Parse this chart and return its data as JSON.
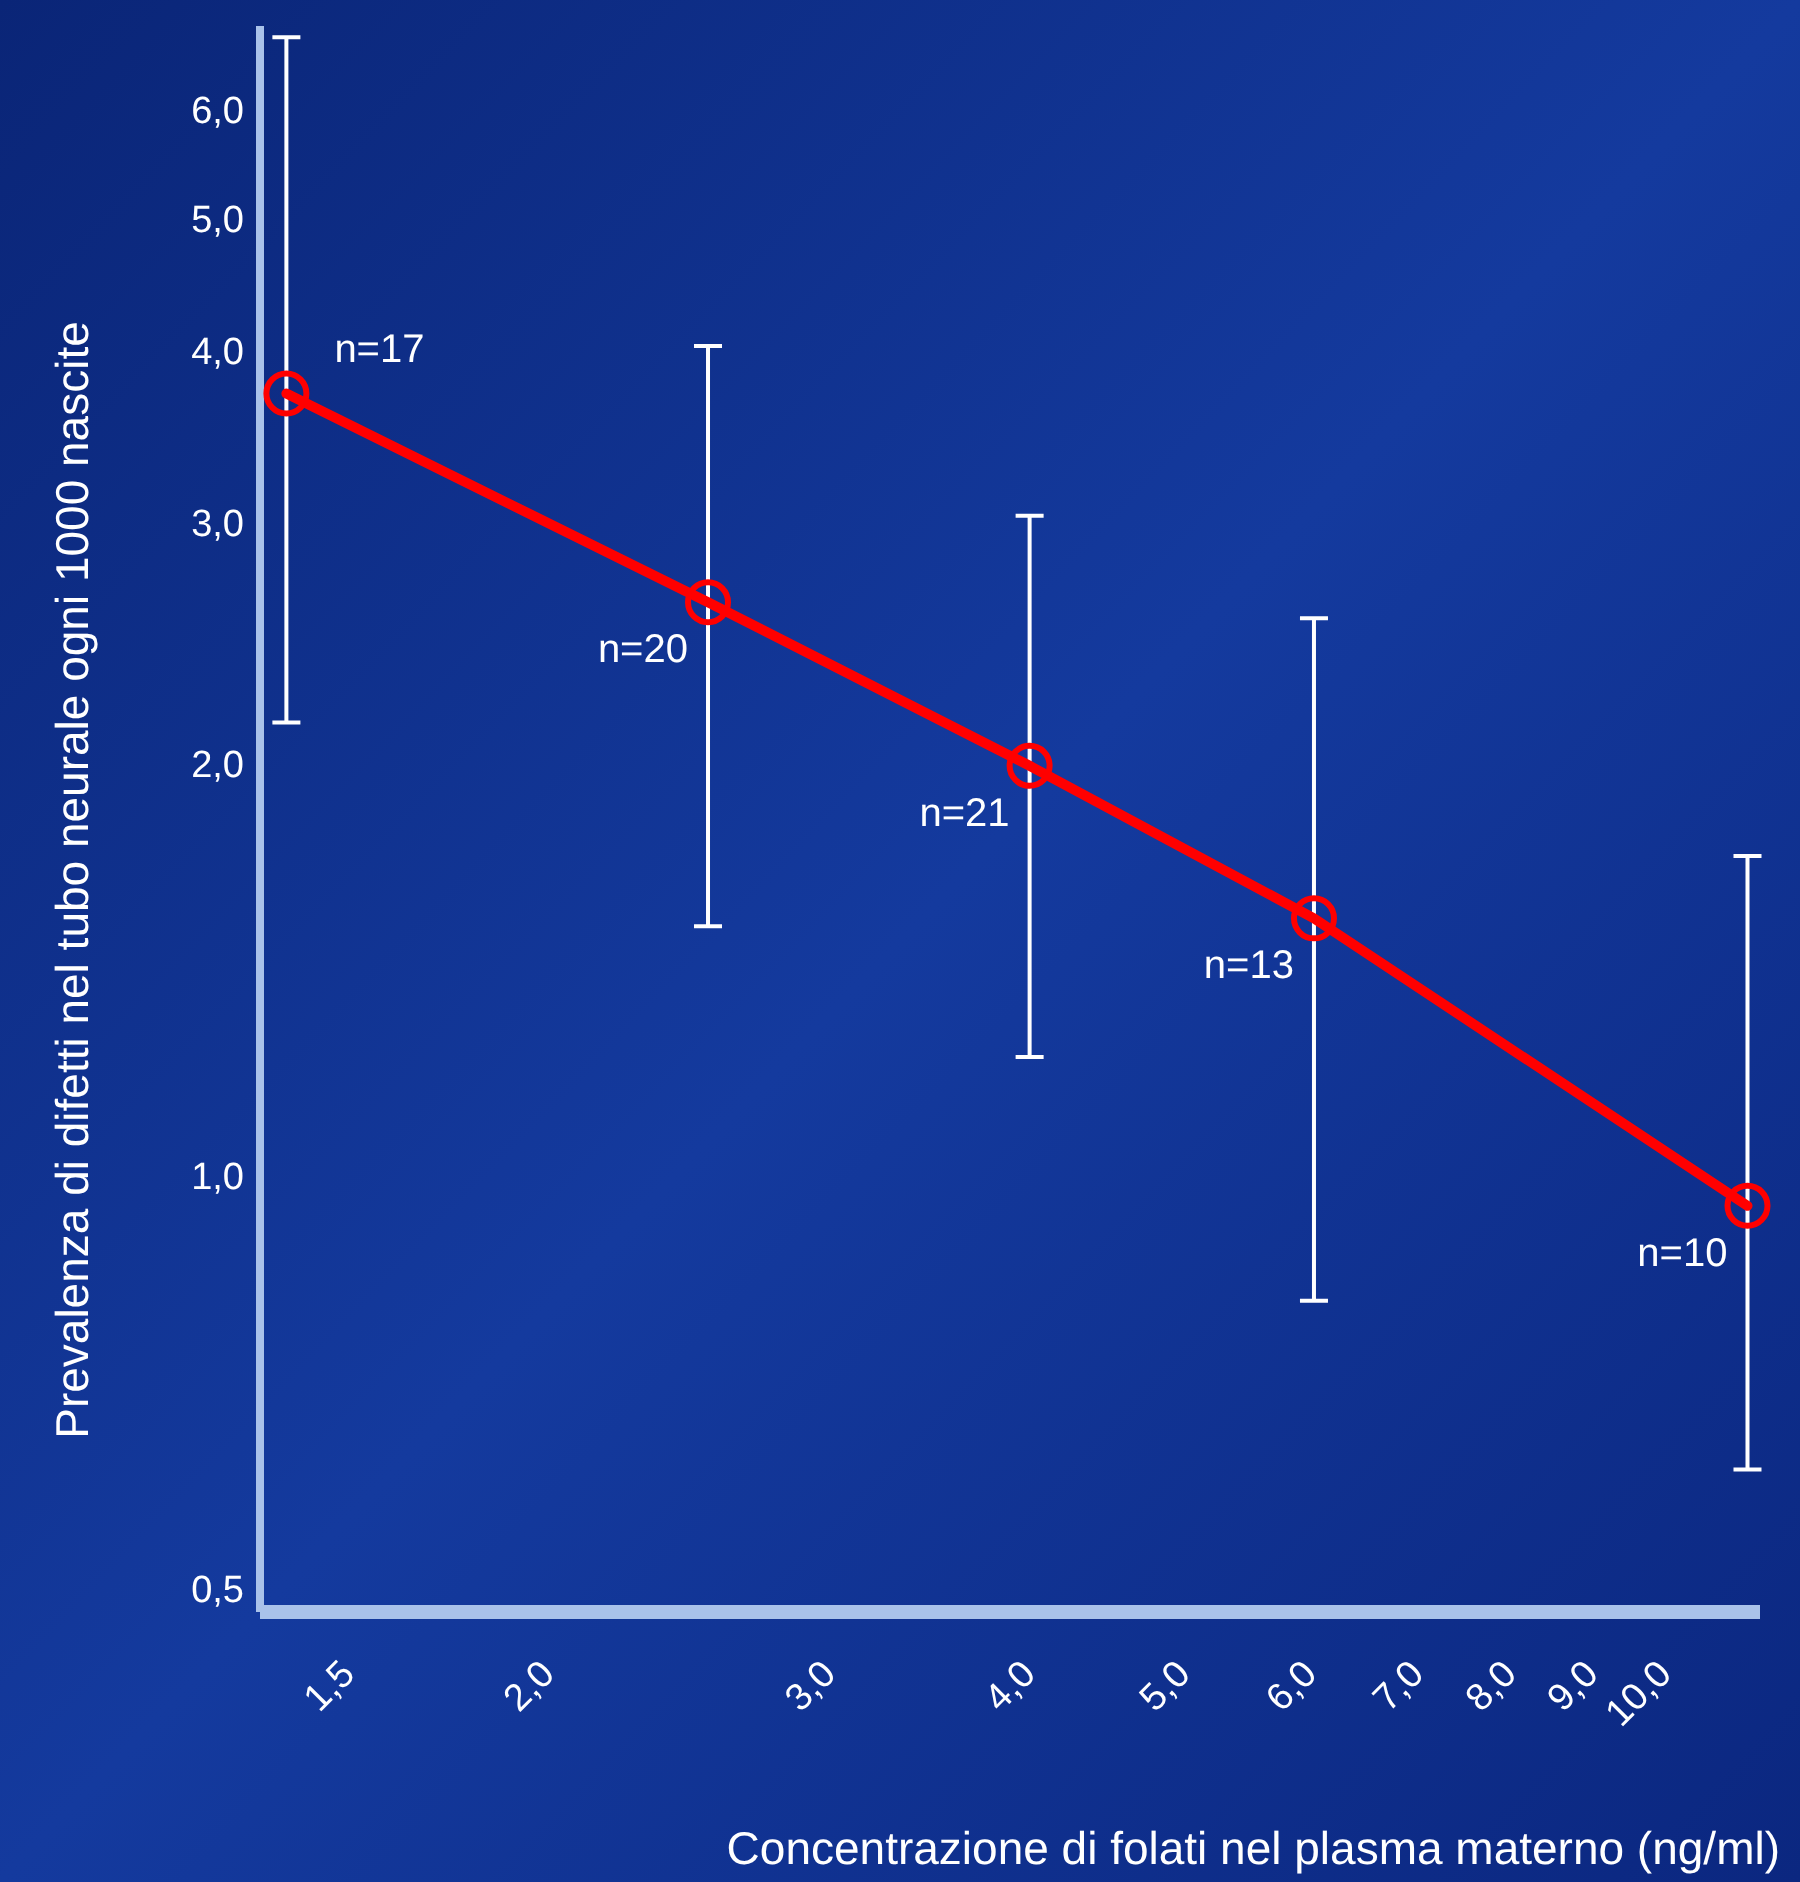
{
  "chart_data": {
    "type": "line",
    "xlabel": "Concentrazione di folati nel plasma materno (ng/ml)",
    "ylabel": "Prevalenza di difetti nel tubo neurale ogni 1000 nascite",
    "x": [
      1.34,
      2.46,
      3.91,
      5.89,
      11.0
    ],
    "series": [
      {
        "color": "#ff0000",
        "values": [
          3.72,
          2.62,
          1.99,
          1.54,
          0.95
        ],
        "errors": [
          [
            2.14,
            6.77
          ],
          [
            1.52,
            4.03
          ],
          [
            1.22,
            3.03
          ],
          [
            0.81,
            2.55
          ],
          [
            0.61,
            1.71
          ]
        ]
      }
    ],
    "log": "xy",
    "marker": "circle",
    "line_style": "solid",
    "grid": false,
    "xlim": [
      1.29,
      11.2
    ],
    "ylim": [
      0.48,
      6.9
    ],
    "xticks": [
      {
        "value": 1.5,
        "label": "1,5"
      },
      {
        "value": 2,
        "label": "2,0"
      },
      {
        "value": 3,
        "label": "3,0"
      },
      {
        "value": 4,
        "label": "4,0"
      },
      {
        "value": 5,
        "label": "5,0"
      },
      {
        "value": 6,
        "label": "6,0"
      },
      {
        "value": 7,
        "label": "7,0"
      },
      {
        "value": 8,
        "label": "8,0"
      },
      {
        "value": 9,
        "label": "9,0"
      },
      {
        "value": 10,
        "label": "10,0"
      }
    ],
    "yticks": [
      {
        "value": 0.5,
        "label": "0,5"
      },
      {
        "value": 1,
        "label": "1,0"
      },
      {
        "value": 2,
        "label": "2,0"
      },
      {
        "value": 3,
        "label": "3,0"
      },
      {
        "value": 4,
        "label": "4,0"
      },
      {
        "value": 5,
        "label": "5,0"
      },
      {
        "value": 6,
        "label": "6,0"
      }
    ],
    "annotations": [
      {
        "text": "n=17",
        "x": 1.34,
        "y": 3.72
      },
      {
        "text": "n=20",
        "x": 2.46,
        "y": 2.62
      },
      {
        "text": "n=21",
        "x": 3.91,
        "y": 1.99
      },
      {
        "text": "n=13",
        "x": 5.89,
        "y": 1.54
      },
      {
        "text": "n=10",
        "x": 11.0,
        "y": 0.95
      }
    ]
  }
}
